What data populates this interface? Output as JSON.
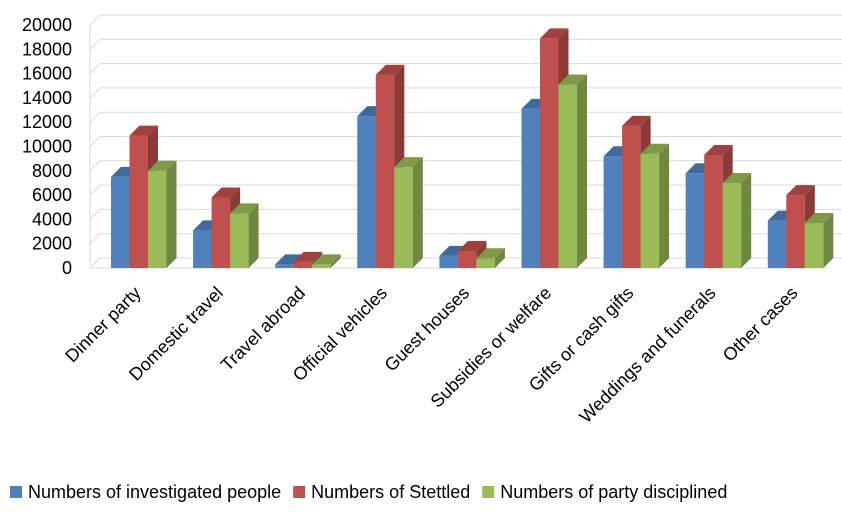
{
  "chart_data": {
    "type": "bar",
    "title": "",
    "xlabel": "",
    "ylabel": "",
    "ylim": [
      0,
      20000
    ],
    "yticks": [
      0,
      2000,
      4000,
      6000,
      8000,
      10000,
      12000,
      14000,
      16000,
      18000,
      20000
    ],
    "grid": true,
    "legend_position": "bottom",
    "style": "3d-clustered-column",
    "categories": [
      "Dinner party",
      "Domestic travel",
      "Travel abroad",
      "Official vehicles",
      "Guest houses",
      "Subsidies or welfare",
      "Gifts or cash gifts",
      "Weddings and funerals",
      "Other cases"
    ],
    "series": [
      {
        "name": "Numbers of investigated people",
        "color": "#4F81BD",
        "values": [
          7500,
          3100,
          300,
          12500,
          1000,
          13100,
          9200,
          7800,
          3900
        ]
      },
      {
        "name": "Numbers of Stettled",
        "color": "#C0504D",
        "values": [
          10900,
          5800,
          500,
          15900,
          1400,
          18900,
          11700,
          9300,
          6000
        ]
      },
      {
        "name": "Numbers of party disciplined",
        "color": "#9BBB59",
        "values": [
          8000,
          4500,
          300,
          8300,
          800,
          15100,
          9400,
          7000,
          3700
        ]
      }
    ]
  }
}
